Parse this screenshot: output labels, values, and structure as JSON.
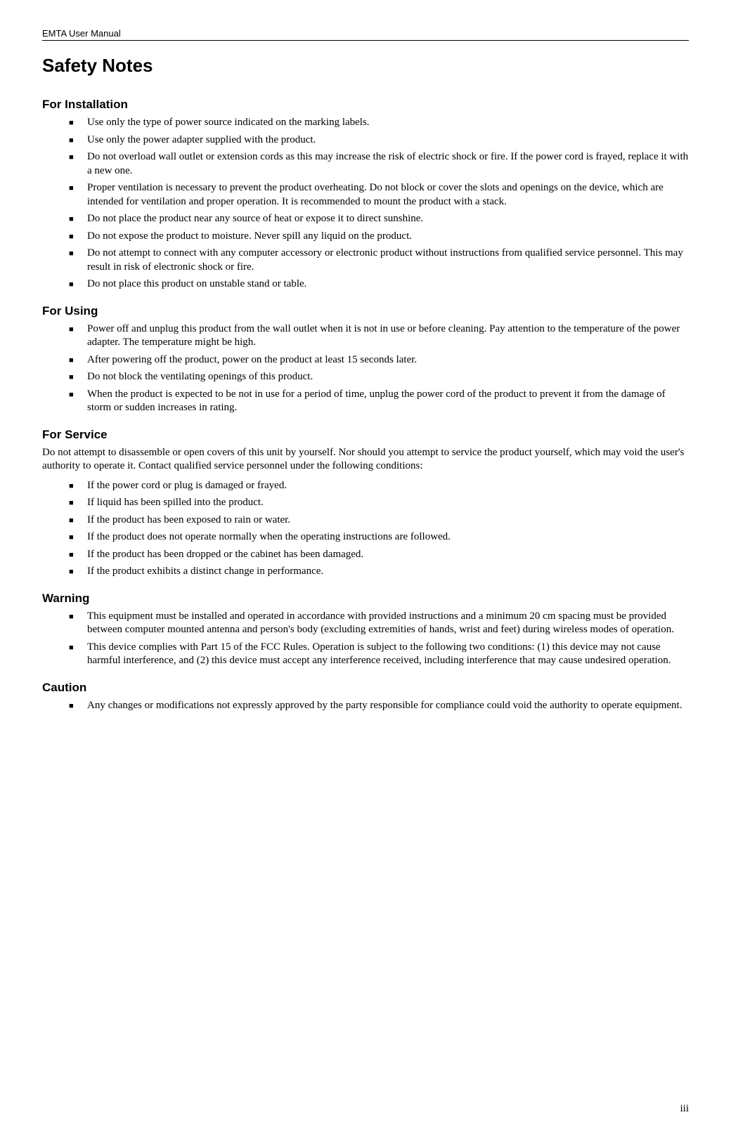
{
  "header": "EMTA User Manual",
  "title": "Safety Notes",
  "sections": {
    "install": {
      "heading": "For Installation",
      "items": [
        "Use only the type of power source indicated on the marking labels.",
        "Use only the power adapter supplied with the product.",
        "Do not overload wall outlet or extension cords as this may increase the risk of electric shock or fire. If the power cord is frayed, replace it with a new one.",
        "Proper ventilation is necessary to prevent the product overheating. Do not block or cover the slots and openings on the device, which are intended for ventilation and proper operation. It is recommended to mount the product with a stack.",
        "Do not place the product near any source of heat or expose it to direct sunshine.",
        "Do not expose the product to moisture. Never spill any liquid on the product.",
        "Do not attempt to connect with any computer accessory or electronic product without instructions from qualified service personnel. This may result in risk of electronic shock or fire.",
        "Do not place this product on unstable stand or table."
      ]
    },
    "using": {
      "heading": "For Using",
      "items": [
        "Power off and unplug this product from the wall outlet when it is not in use or before cleaning. Pay attention to the temperature of the power adapter. The temperature might be high.",
        "After powering off the product, power on the product at least 15 seconds later.",
        "Do not block the ventilating openings of this product.",
        "When the product is expected to be not in use for a period of time, unplug the power cord of the product to prevent it from the damage of storm or sudden increases in rating."
      ]
    },
    "service": {
      "heading": "For Service",
      "intro": "Do not attempt to disassemble or open covers of this unit by yourself. Nor should you attempt to service the product yourself, which may void the user's authority to operate it. Contact qualified service personnel under the following conditions:",
      "items": [
        "If the power cord or plug is damaged or frayed.",
        "If liquid has been spilled into the product.",
        "If the product has been exposed to rain or water.",
        "If the product does not operate normally when the operating instructions are followed.",
        "If the product has been dropped or the cabinet has been damaged.",
        "If the product exhibits a distinct change in performance."
      ]
    },
    "warning": {
      "heading": "Warning",
      "items": [
        "This equipment must be installed and operated in accordance with provided instructions and a minimum 20 cm spacing must be provided between computer mounted antenna and person's body (excluding extremities of hands, wrist and feet) during wireless modes of operation.",
        "This device complies with Part 15 of the FCC Rules. Operation is subject to the following two conditions: (1) this device may not cause harmful interference, and (2) this device must accept any interference received, including interference that may cause undesired operation."
      ]
    },
    "caution": {
      "heading": "Caution",
      "items": [
        "Any changes or modifications not expressly approved by the party responsible for compliance could void the authority to operate equipment."
      ]
    }
  },
  "pageNumber": "iii"
}
